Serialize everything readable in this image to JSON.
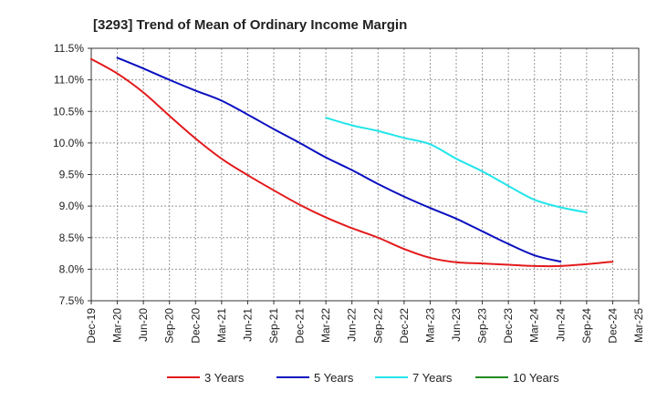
{
  "chart_data": {
    "type": "line",
    "title": "[3293]  Trend of Mean of Ordinary Income Margin",
    "xlabel": "",
    "ylabel": "",
    "y_ticks": [
      "11.5%",
      "11.0%",
      "10.5%",
      "10.0%",
      "9.5%",
      "9.0%",
      "8.5%",
      "8.0%",
      "7.5%"
    ],
    "y_tick_values": [
      11.5,
      11.0,
      10.5,
      10.0,
      9.5,
      9.0,
      8.5,
      8.0,
      7.5
    ],
    "ylim": [
      7.5,
      11.5
    ],
    "x_ticks": [
      "Dec-19",
      "Mar-20",
      "Jun-20",
      "Sep-20",
      "Dec-20",
      "Mar-21",
      "Jun-21",
      "Sep-21",
      "Dec-21",
      "Mar-22",
      "Jun-22",
      "Sep-22",
      "Dec-22",
      "Mar-23",
      "Jun-23",
      "Sep-23",
      "Dec-23",
      "Mar-24",
      "Jun-24",
      "Sep-24",
      "Dec-24",
      "Mar-25"
    ],
    "grid": true,
    "legend_position": "bottom",
    "series": [
      {
        "name": "3 Years",
        "color": "#e31a1c",
        "start_index": 0,
        "values": [
          11.33,
          11.1,
          10.8,
          10.43,
          10.07,
          9.75,
          9.49,
          9.25,
          9.02,
          8.82,
          8.65,
          8.5,
          8.32,
          8.18,
          8.11,
          8.09,
          8.07,
          8.05,
          8.05,
          8.08,
          8.12
        ]
      },
      {
        "name": "5 Years",
        "color": "#0a0fbf",
        "start_index": 1,
        "values": [
          11.35,
          11.18,
          11.0,
          10.83,
          10.67,
          10.45,
          10.22,
          10.0,
          9.77,
          9.57,
          9.35,
          9.15,
          8.97,
          8.8,
          8.6,
          8.4,
          8.22,
          8.12
        ]
      },
      {
        "name": "7 Years",
        "color": "#22e5ea",
        "start_index": 9,
        "values": [
          10.4,
          10.28,
          10.19,
          10.08,
          9.98,
          9.75,
          9.55,
          9.32,
          9.1,
          8.98,
          8.9
        ]
      },
      {
        "name": "10 Years",
        "color": "#1f8a1f",
        "start_index": 0,
        "values": []
      }
    ]
  }
}
